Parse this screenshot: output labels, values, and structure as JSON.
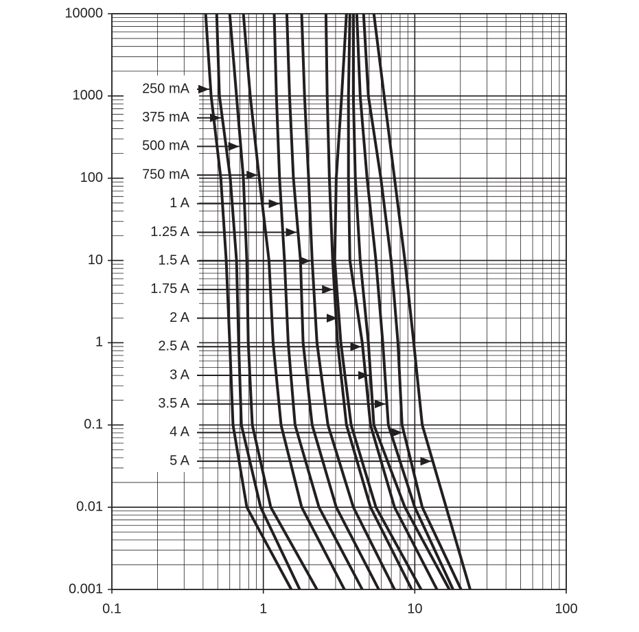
{
  "chart_data": {
    "type": "line",
    "xscale": "log",
    "yscale": "log",
    "xlim": [
      0.1,
      100
    ],
    "ylim": [
      0.001,
      10000
    ],
    "xticks": [
      0.1,
      1,
      10,
      100
    ],
    "yticks": [
      0.001,
      0.01,
      0.1,
      1,
      10,
      100,
      1000,
      10000
    ],
    "grid": true,
    "minor_grid": true,
    "series": [
      {
        "name": "250 mA",
        "color": "#231f20",
        "x": [
          0.416,
          0.452,
          0.524,
          0.569,
          0.6,
          0.631,
          0.778,
          1.53
        ],
        "values": [
          10000,
          1000,
          100,
          10,
          1,
          0.1,
          0.01,
          0.001
        ]
      },
      {
        "name": "375 mA",
        "color": "#231f20",
        "x": [
          0.492,
          0.513,
          0.605,
          0.665,
          0.687,
          0.716,
          0.959,
          1.74
        ],
        "values": [
          10000,
          1000,
          100,
          10,
          1,
          0.1,
          0.01,
          0.001
        ]
      },
      {
        "name": "500 mA",
        "color": "#231f20",
        "x": [
          0.6,
          0.665,
          0.738,
          0.778,
          0.795,
          0.846,
          1.12,
          2.26
        ],
        "values": [
          10000,
          1000,
          100,
          10,
          1,
          0.1,
          0.01,
          0.001
        ]
      },
      {
        "name": "750 mA",
        "color": "#231f20",
        "x": [
          0.738,
          0.82,
          0.94,
          1.09,
          1.16,
          1.31,
          1.79,
          3.43
        ],
        "values": [
          10000,
          1000,
          100,
          10,
          1,
          0.1,
          0.01,
          0.001
        ]
      },
      {
        "name": "1 A",
        "color": "#231f20",
        "x": [
          1.18,
          1.22,
          1.28,
          1.38,
          1.46,
          1.62,
          2.33,
          4.5
        ],
        "values": [
          10000,
          1000,
          100,
          10,
          1,
          0.1,
          0.01,
          0.001
        ]
      },
      {
        "name": "1.25 A",
        "color": "#231f20",
        "x": [
          1.43,
          1.49,
          1.58,
          1.76,
          1.83,
          2.1,
          3.03,
          5.78
        ],
        "values": [
          10000,
          1000,
          100,
          10,
          1,
          0.1,
          0.01,
          0.001
        ]
      },
      {
        "name": "1.5 A",
        "color": "#231f20",
        "x": [
          1.79,
          1.87,
          1.99,
          2.1,
          2.26,
          2.67,
          3.93,
          7.35
        ],
        "values": [
          10000,
          1000,
          100,
          10,
          1,
          0.1,
          0.01,
          0.001
        ]
      },
      {
        "name": "1.75 A",
        "color": "#231f20",
        "x": [
          2.59,
          2.64,
          2.73,
          2.87,
          3.09,
          3.54,
          5.1,
          9.55
        ],
        "values": [
          10000,
          1000,
          100,
          10,
          1,
          0.1,
          0.01,
          0.001
        ]
      },
      {
        "name": "2 A",
        "color": "#231f20",
        "x": [
          3.54,
          3.29,
          3.03,
          2.96,
          3.25,
          3.8,
          5.54,
          11.0
        ],
        "values": [
          10000,
          1000,
          100,
          10,
          1,
          0.1,
          0.01,
          0.001
        ]
      },
      {
        "name": "2.5 A",
        "color": "#231f20",
        "x": [
          3.73,
          3.65,
          3.65,
          3.73,
          4.5,
          5.1,
          7.35,
          14.0
        ],
        "values": [
          10000,
          1000,
          100,
          10,
          1,
          0.1,
          0.01,
          0.001
        ]
      },
      {
        "name": "3 A",
        "color": "#231f20",
        "x": [
          3.93,
          3.93,
          4.05,
          4.36,
          4.94,
          5.37,
          8.6,
          16.9
        ],
        "values": [
          10000,
          1000,
          100,
          10,
          1,
          0.1,
          0.01,
          0.001
        ]
      },
      {
        "name": "3.5 A",
        "color": "#231f20",
        "x": [
          4.14,
          4.36,
          4.84,
          5.54,
          6.15,
          6.69,
          10.0,
          17.9
        ],
        "values": [
          10000,
          1000,
          100,
          10,
          1,
          0.1,
          0.01,
          0.001
        ]
      },
      {
        "name": "4 A",
        "color": "#231f20",
        "x": [
          4.59,
          4.94,
          5.97,
          6.98,
          7.74,
          8.24,
          11.2,
          20.2
        ],
        "values": [
          10000,
          1000,
          100,
          10,
          1,
          0.1,
          0.01,
          0.001
        ]
      },
      {
        "name": "5 A",
        "color": "#231f20",
        "x": [
          5.37,
          6.28,
          7.35,
          8.6,
          9.84,
          11.2,
          16.1,
          23.2
        ],
        "values": [
          10000,
          1000,
          100,
          10,
          1,
          0.1,
          0.01,
          0.001
        ]
      }
    ]
  }
}
